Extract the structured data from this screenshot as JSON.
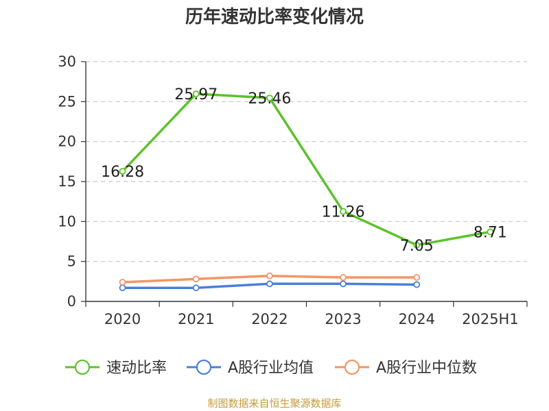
{
  "chart_data": {
    "type": "line",
    "title": "历年速动比率变化情况",
    "categories": [
      "2020",
      "2021",
      "2022",
      "2023",
      "2024",
      "2025H1"
    ],
    "ylim": [
      0,
      30
    ],
    "yticks": [
      0,
      5,
      10,
      15,
      20,
      25,
      30
    ],
    "grid": true,
    "legend_position": "bottom",
    "series": [
      {
        "name": "速动比率",
        "color": "#5cc22b",
        "values": [
          16.28,
          25.97,
          25.46,
          11.26,
          7.05,
          8.71
        ],
        "show_labels": true
      },
      {
        "name": "A股行业均值",
        "color": "#4a7fd9",
        "values": [
          1.7,
          1.7,
          2.2,
          2.2,
          2.1,
          null
        ],
        "show_labels": false
      },
      {
        "name": "A股行业中位数",
        "color": "#f59467",
        "values": [
          2.4,
          2.8,
          3.2,
          3.0,
          3.0,
          null
        ],
        "show_labels": false
      }
    ]
  },
  "footer": {
    "source": "制图数据来自恒生聚源数据库"
  }
}
